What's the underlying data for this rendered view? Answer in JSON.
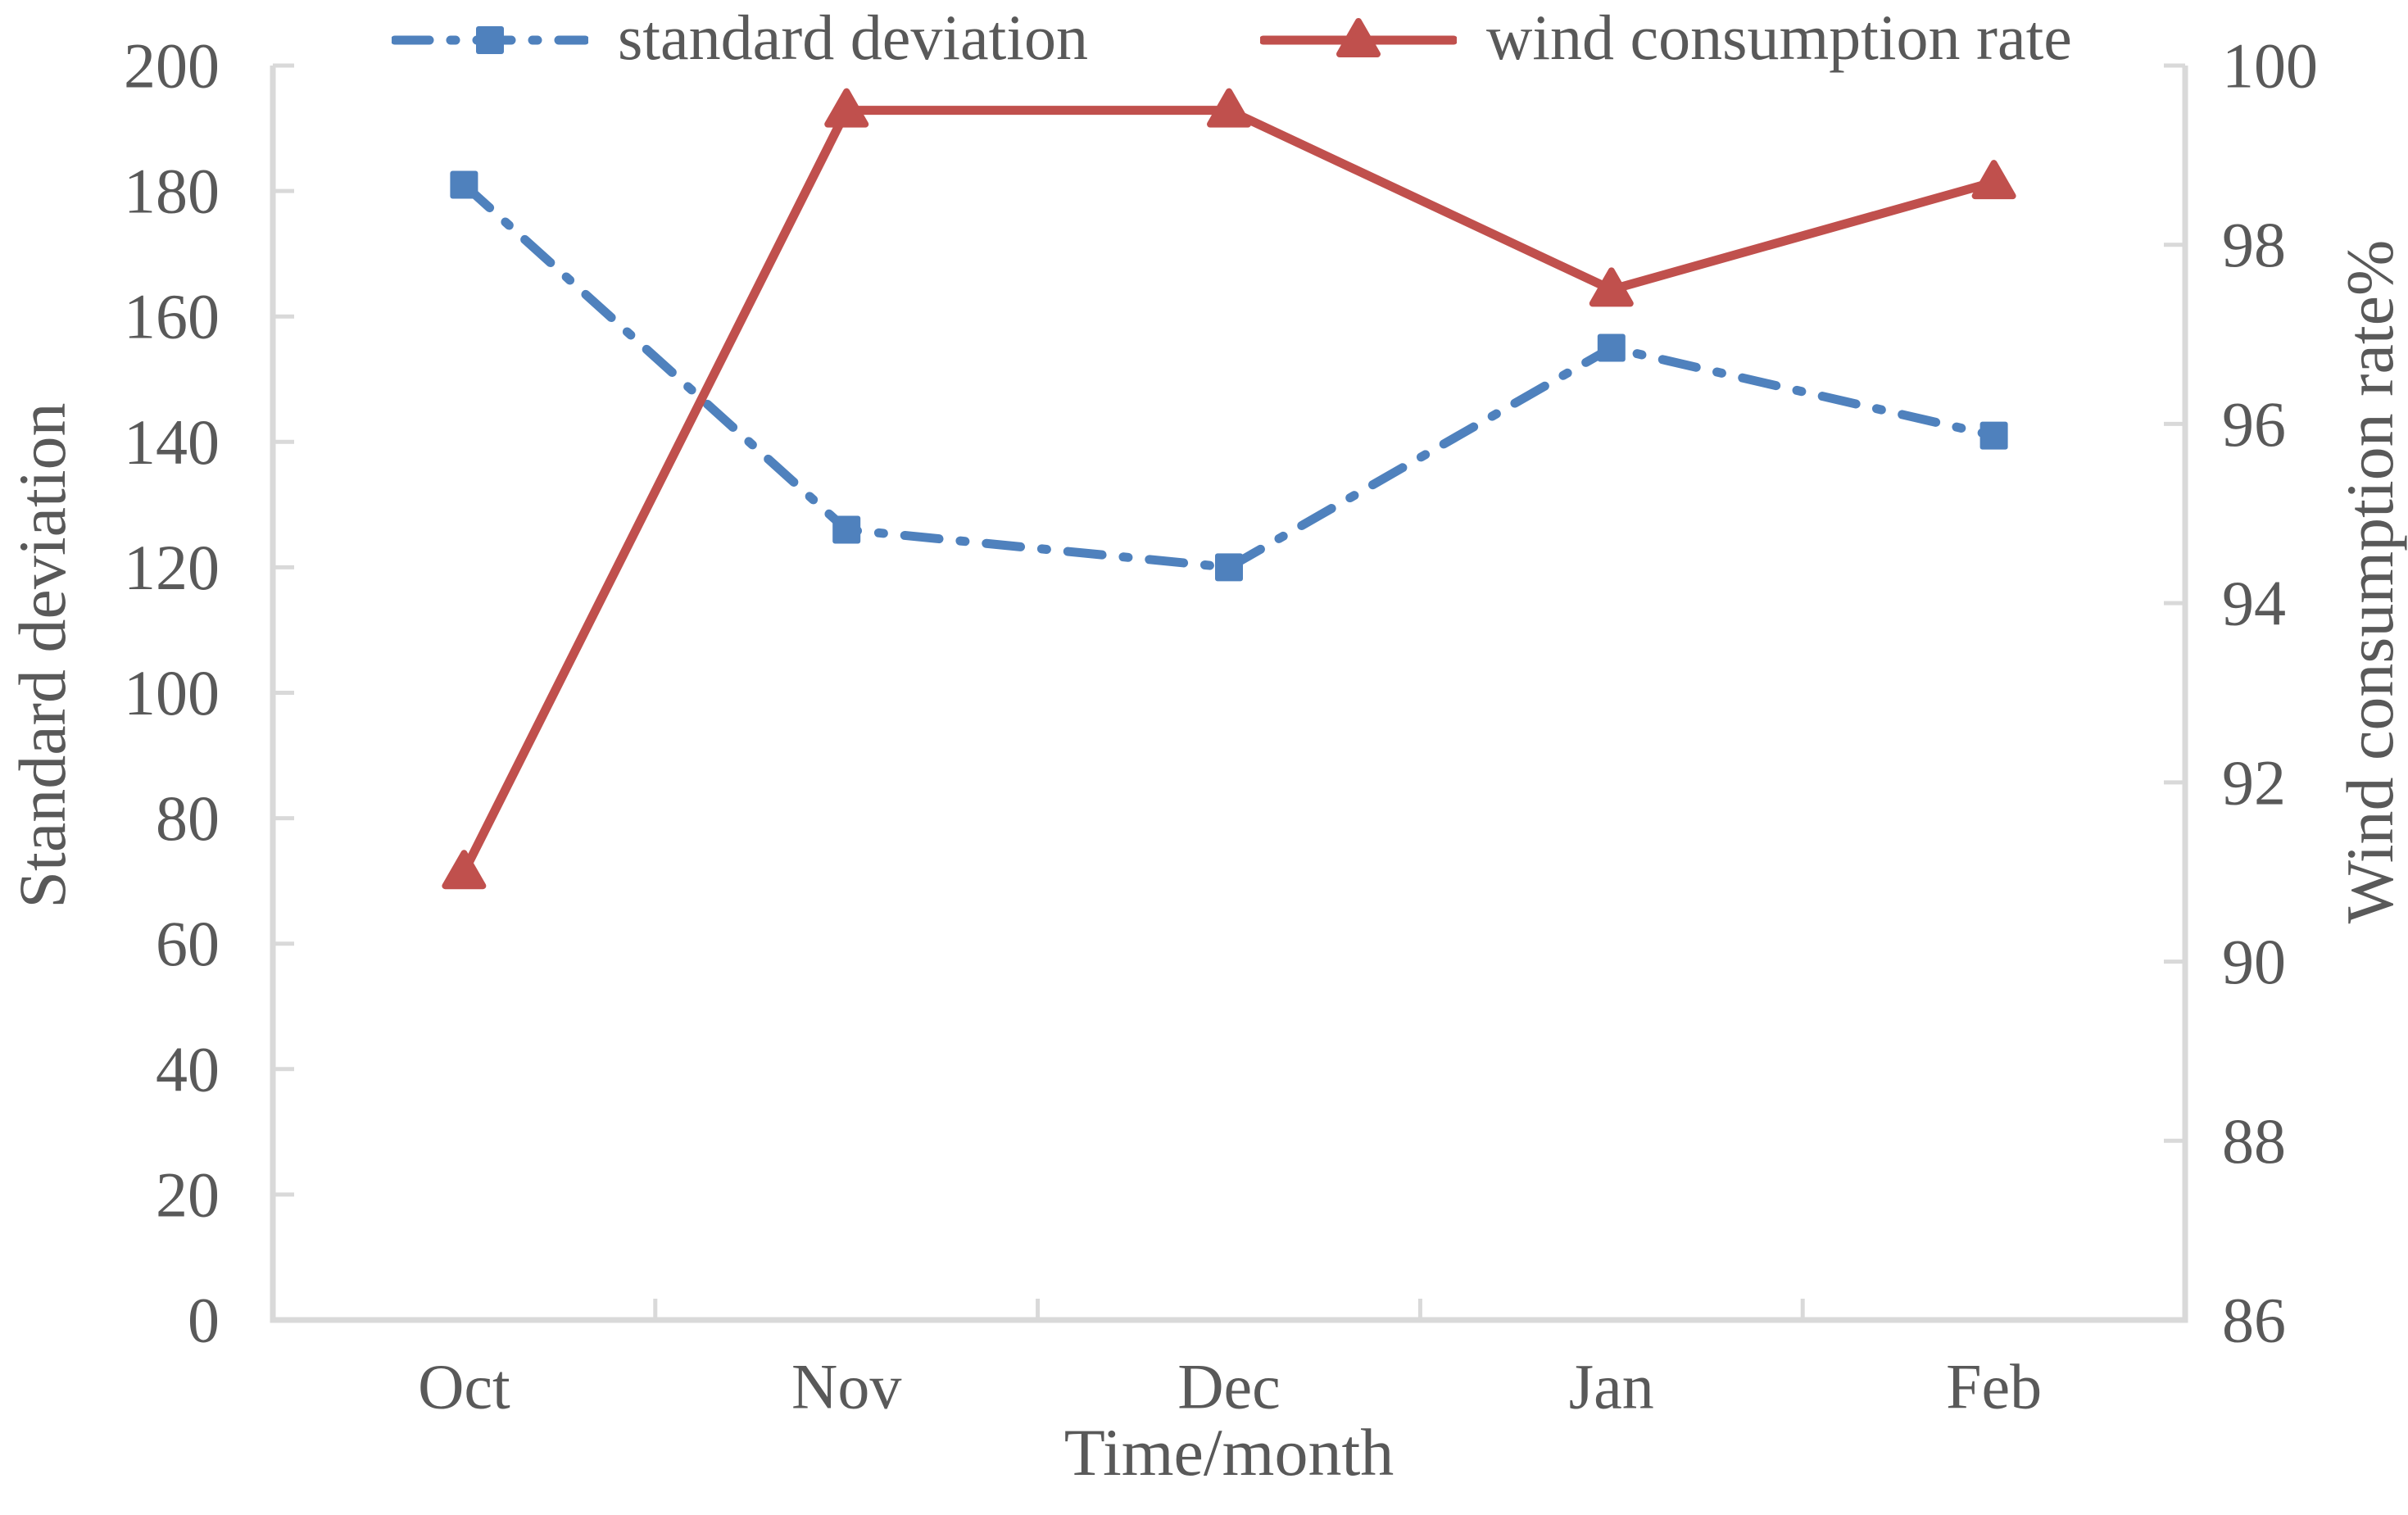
{
  "chart_data": {
    "type": "line",
    "title": "",
    "categories": [
      "Oct",
      "Nov",
      "Dec",
      "Jan",
      "Feb"
    ],
    "series": [
      {
        "name": "standard deviation",
        "axis": "left",
        "color": "#4F81BD",
        "line_style": "dash-dot",
        "marker": "square",
        "values": [
          181,
          126,
          120,
          155,
          141
        ]
      },
      {
        "name": "wind consumption rate",
        "axis": "right",
        "color": "#C0504D",
        "line_style": "solid",
        "marker": "triangle",
        "values": [
          91.0,
          99.5,
          99.5,
          97.5,
          98.7
        ]
      }
    ],
    "xlabel": "Time/month",
    "left_axis": {
      "label": "Standard deviation",
      "min": 0,
      "max": 200,
      "step": 20,
      "tick_labels": [
        "0",
        "20",
        "40",
        "60",
        "80",
        "100",
        "120",
        "140",
        "160",
        "180",
        "200"
      ]
    },
    "right_axis": {
      "label": "Wind consumption rate%",
      "min": 86,
      "max": 100,
      "step": 2,
      "tick_labels": [
        "86",
        "88",
        "90",
        "92",
        "94",
        "96",
        "98",
        "100"
      ]
    },
    "legend_position": "top",
    "grid": false,
    "axis_color": "#D9D9D9",
    "text_color": "#595959",
    "background": "#FFFFFF"
  }
}
